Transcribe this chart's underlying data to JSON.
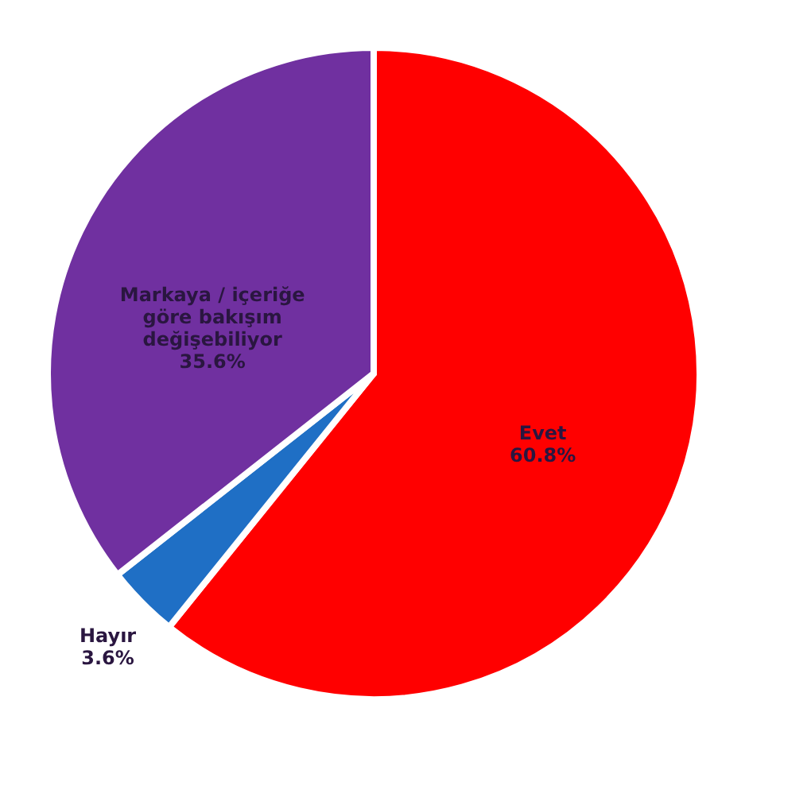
{
  "chart_data": {
    "type": "pie",
    "categories": [
      "Evet",
      "Hayır",
      "Markaya / içeriğe\ngöre bakışım\ndeğişebiliyor"
    ],
    "values": [
      60.8,
      3.6,
      35.6
    ],
    "colors": [
      "#ff0000",
      "#1f6fc5",
      "#7030a0"
    ],
    "value_labels": [
      "60.8%",
      "3.6%",
      "35.6%"
    ],
    "legend": false
  }
}
